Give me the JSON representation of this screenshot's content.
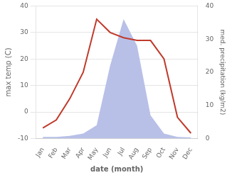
{
  "chart_data": {
    "type": "line",
    "xlabel": "date (month)",
    "ylabel": "max temp (C)",
    "y2label": "med. precipitation (kg/m2)",
    "categories": [
      "Jan",
      "Feb",
      "Mar",
      "Apr",
      "May",
      "Jun",
      "Jul",
      "Aug",
      "Sep",
      "Oct",
      "Nov",
      "Dec"
    ],
    "series": [
      {
        "type": "area",
        "color": "#b8c0e8",
        "axis": "y2",
        "values": [
          0.5,
          0.5,
          0.8,
          1.5,
          4,
          22,
          36,
          28,
          7,
          1.5,
          0.5,
          0.3
        ]
      },
      {
        "type": "line",
        "color": "#c0392b",
        "values": [
          -6,
          -3,
          5,
          15,
          35,
          30,
          28,
          27,
          27,
          20,
          -2,
          -8
        ]
      }
    ],
    "ylim": [
      -10,
      40
    ],
    "yticks": [
      -10,
      0,
      10,
      20,
      30,
      40
    ],
    "y2lim": [
      0,
      40
    ],
    "y2ticks": [
      0,
      10,
      20,
      30,
      40
    ],
    "grid": true
  }
}
